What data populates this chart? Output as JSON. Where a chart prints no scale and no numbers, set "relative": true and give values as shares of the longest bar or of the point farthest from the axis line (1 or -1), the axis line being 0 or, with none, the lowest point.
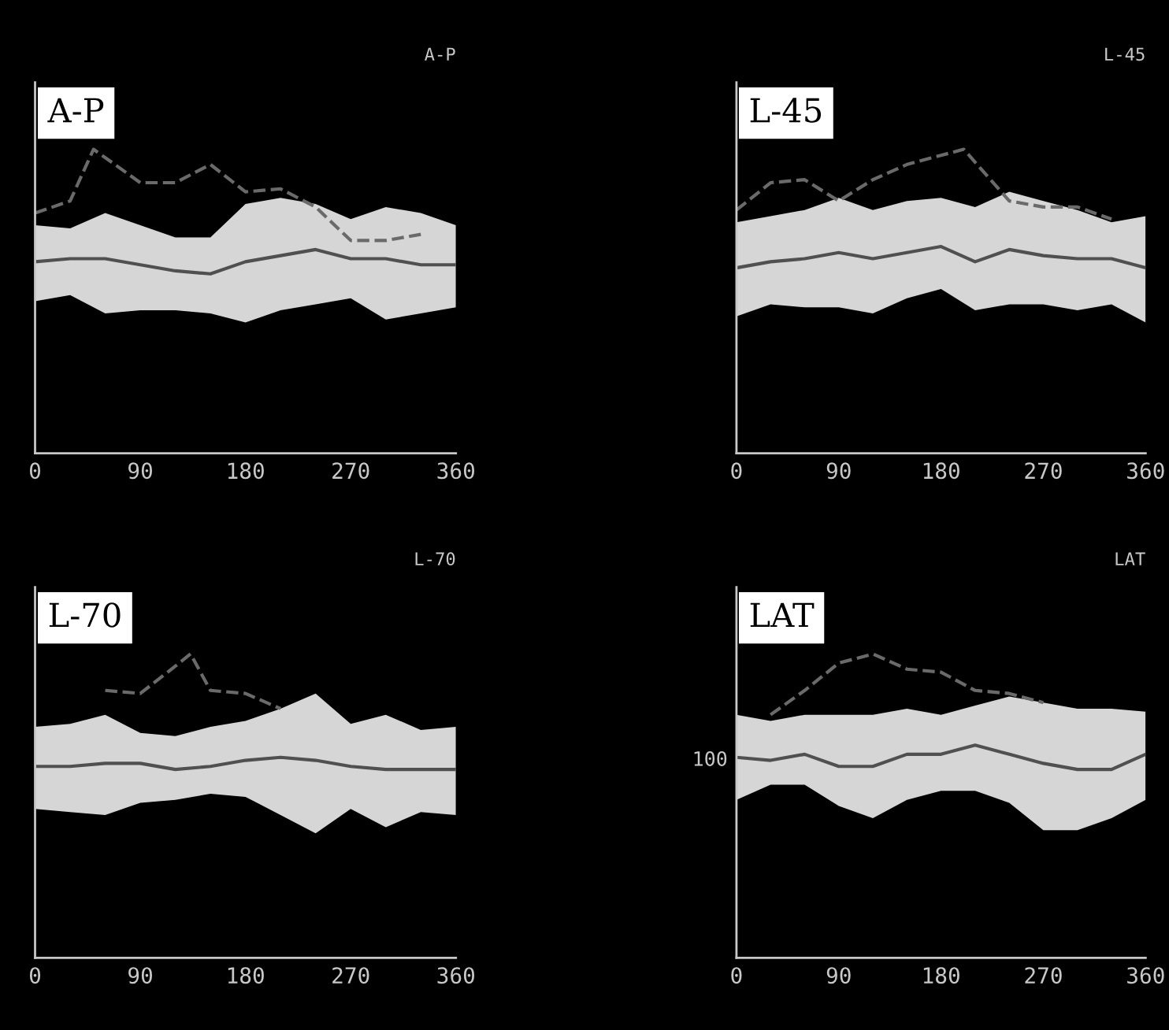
{
  "chart_data": [
    {
      "type": "line",
      "title": "A-P",
      "annotations": [
        "A-P"
      ],
      "relative": true,
      "xlim": [
        0,
        360
      ],
      "xticks": [
        0,
        90,
        180,
        270,
        360
      ],
      "grid": false,
      "legend": false,
      "x": [
        0,
        30,
        60,
        90,
        120,
        150,
        180,
        210,
        240,
        270,
        300,
        330,
        360
      ],
      "series": [
        {
          "color": "#505050",
          "values": [
            0.63,
            0.64,
            0.64,
            0.62,
            0.6,
            0.59,
            0.63,
            0.65,
            0.67,
            0.64,
            0.64,
            0.62,
            0.62
          ],
          "lower": [
            0.5,
            0.52,
            0.46,
            0.47,
            0.47,
            0.46,
            0.43,
            0.47,
            0.49,
            0.51,
            0.44,
            0.46,
            0.48
          ],
          "upper": [
            0.75,
            0.74,
            0.79,
            0.75,
            0.71,
            0.71,
            0.82,
            0.84,
            0.82,
            0.77,
            0.81,
            0.79,
            0.75
          ]
        },
        {
          "type": "line",
          "line_style": "dashed",
          "color": "#6a6a6a",
          "x": [
            0,
            30,
            50,
            90,
            120,
            150,
            180,
            210,
            240,
            270,
            300,
            330
          ],
          "values": [
            0.79,
            0.83,
            1.0,
            0.89,
            0.89,
            0.95,
            0.86,
            0.87,
            0.81,
            0.7,
            0.7,
            0.72
          ]
        }
      ]
    },
    {
      "type": "line",
      "title": "L-45",
      "annotations": [
        "L-45"
      ],
      "relative": true,
      "xlim": [
        0,
        360
      ],
      "xticks": [
        0,
        90,
        180,
        270,
        360
      ],
      "grid": false,
      "legend": false,
      "x": [
        0,
        30,
        60,
        90,
        120,
        150,
        180,
        210,
        240,
        270,
        300,
        330,
        360
      ],
      "series": [
        {
          "color": "#505050",
          "values": [
            0.61,
            0.63,
            0.64,
            0.66,
            0.64,
            0.66,
            0.68,
            0.63,
            0.67,
            0.65,
            0.64,
            0.64,
            0.61
          ],
          "lower": [
            0.45,
            0.49,
            0.48,
            0.48,
            0.46,
            0.51,
            0.54,
            0.47,
            0.49,
            0.49,
            0.47,
            0.49,
            0.43
          ],
          "upper": [
            0.76,
            0.78,
            0.8,
            0.84,
            0.8,
            0.83,
            0.84,
            0.81,
            0.86,
            0.83,
            0.8,
            0.76,
            0.78
          ]
        },
        {
          "type": "line",
          "line_style": "dashed",
          "color": "#6a6a6a",
          "x": [
            0,
            30,
            60,
            90,
            120,
            150,
            180,
            200,
            240,
            270,
            300,
            330
          ],
          "values": [
            0.8,
            0.89,
            0.9,
            0.83,
            0.9,
            0.95,
            0.98,
            1.0,
            0.83,
            0.81,
            0.81,
            0.77
          ]
        }
      ]
    },
    {
      "type": "line",
      "title": "L-70",
      "annotations": [
        "L-70"
      ],
      "relative": true,
      "xlim": [
        0,
        360
      ],
      "xticks": [
        0,
        90,
        180,
        270,
        360
      ],
      "grid": false,
      "legend": false,
      "x": [
        0,
        30,
        60,
        90,
        120,
        150,
        180,
        210,
        240,
        270,
        300,
        330,
        360
      ],
      "series": [
        {
          "color": "#505050",
          "values": [
            0.63,
            0.63,
            0.64,
            0.64,
            0.62,
            0.63,
            0.65,
            0.66,
            0.65,
            0.63,
            0.62,
            0.62,
            0.62
          ],
          "lower": [
            0.49,
            0.48,
            0.47,
            0.51,
            0.52,
            0.54,
            0.53,
            0.47,
            0.41,
            0.49,
            0.43,
            0.48,
            0.47
          ],
          "upper": [
            0.76,
            0.77,
            0.8,
            0.74,
            0.73,
            0.76,
            0.78,
            0.82,
            0.87,
            0.77,
            0.8,
            0.75,
            0.76
          ]
        },
        {
          "type": "line",
          "line_style": "dashed",
          "color": "#6a6a6a",
          "x": [
            60,
            90,
            120,
            133,
            150,
            180,
            210
          ],
          "values": [
            0.88,
            0.87,
            0.96,
            1.0,
            0.88,
            0.87,
            0.82
          ]
        }
      ]
    },
    {
      "type": "line",
      "title": "LAT",
      "annotations": [
        "LAT",
        {
          "text": "100",
          "x": 0,
          "y": 0.65
        }
      ],
      "relative": true,
      "xlim": [
        0,
        360
      ],
      "xticks": [
        0,
        90,
        180,
        270,
        360
      ],
      "grid": false,
      "legend": false,
      "x": [
        0,
        30,
        60,
        90,
        120,
        150,
        180,
        210,
        240,
        270,
        300,
        330,
        360
      ],
      "series": [
        {
          "color": "#505050",
          "values": [
            0.66,
            0.65,
            0.67,
            0.63,
            0.63,
            0.67,
            0.67,
            0.7,
            0.67,
            0.64,
            0.62,
            0.62,
            0.67
          ],
          "lower": [
            0.52,
            0.57,
            0.57,
            0.5,
            0.46,
            0.52,
            0.55,
            0.55,
            0.51,
            0.42,
            0.42,
            0.46,
            0.52
          ],
          "upper": [
            0.8,
            0.78,
            0.8,
            0.8,
            0.8,
            0.82,
            0.8,
            0.83,
            0.86,
            0.84,
            0.82,
            0.82,
            0.81
          ]
        },
        {
          "type": "line",
          "line_style": "dashed",
          "color": "#6a6a6a",
          "x": [
            30,
            60,
            90,
            120,
            150,
            180,
            210,
            240,
            270
          ],
          "values": [
            0.8,
            0.88,
            0.97,
            1.0,
            0.95,
            0.94,
            0.88,
            0.87,
            0.84
          ]
        }
      ]
    }
  ]
}
